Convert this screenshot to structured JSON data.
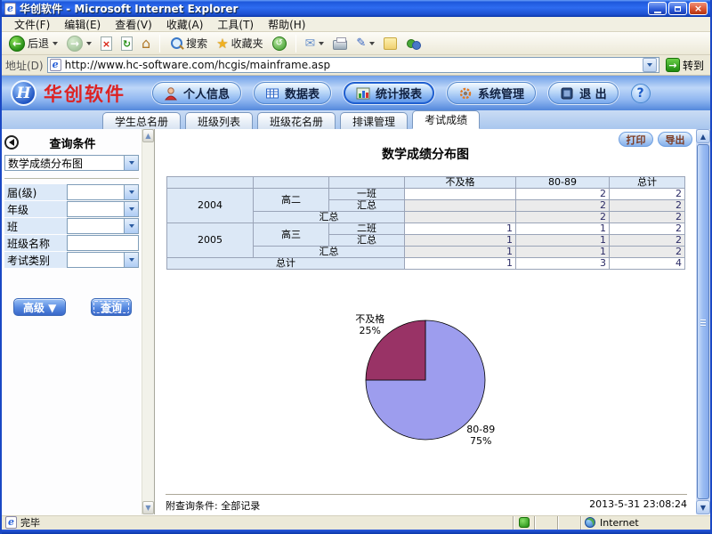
{
  "window": {
    "title": "华创软件 - Microsoft Internet Explorer",
    "menu": [
      "文件(F)",
      "编辑(E)",
      "查看(V)",
      "收藏(A)",
      "工具(T)",
      "帮助(H)"
    ],
    "toolbar": {
      "back": "后退",
      "search": "搜索",
      "favorites": "收藏夹"
    },
    "address": {
      "label": "地址(D)",
      "url": "http://www.hc-software.com/hcgis/mainframe.asp",
      "go": "转到"
    },
    "status": {
      "message": "完毕",
      "zone": "Internet"
    }
  },
  "header": {
    "brand": "华创软件",
    "nav": {
      "personal": "个人信息",
      "datatable": "数据表",
      "reports": "统计报表",
      "system": "系统管理",
      "exit": "退 出"
    }
  },
  "tabs": {
    "t0": "学生总名册",
    "t1": "班级列表",
    "t2": "班级花名册",
    "t3": "排课管理",
    "t4": "考试成绩"
  },
  "sidebar": {
    "title": "查询条件",
    "report_type": "数学成绩分布图",
    "f0": "届(级)",
    "f1": "年级",
    "f2": "班",
    "f3": "班级名称",
    "f4": "考试类别",
    "advanced": "高级 ▼",
    "query": "查询"
  },
  "content": {
    "print": "打印",
    "export": "导出",
    "title": "数学成绩分布图",
    "footer_note": "附查询条件: 全部记录",
    "timestamp": "2013-5-31 23:08:24"
  },
  "table": {
    "headers": [
      "不及格",
      "80-89",
      "总计"
    ],
    "rows": [
      {
        "year": "2004",
        "grade": "高二",
        "cls": "一班",
        "fail": "",
        "mid": "2",
        "total": "2"
      },
      {
        "cls": "汇总",
        "fail": "",
        "mid": "2",
        "total": "2"
      },
      {
        "label": "汇总",
        "fail": "",
        "mid": "2",
        "total": "2"
      },
      {
        "year": "2005",
        "grade": "高三",
        "cls": "二班",
        "fail": "1",
        "mid": "1",
        "total": "2"
      },
      {
        "cls": "汇总",
        "fail": "1",
        "mid": "1",
        "total": "2"
      },
      {
        "label": "汇总",
        "fail": "1",
        "mid": "1",
        "total": "2"
      },
      {
        "label": "总计",
        "fail": "1",
        "mid": "3",
        "total": "4"
      }
    ]
  },
  "chart_data": {
    "type": "pie",
    "title": "数学成绩分布图",
    "categories": [
      "不及格",
      "80-89"
    ],
    "values": [
      1,
      3
    ],
    "slices_draw_order": [
      {
        "label": "80-89",
        "percent": 75,
        "color": "#9d9dee"
      },
      {
        "label": "不及格",
        "percent": 25,
        "color": "#993366"
      }
    ],
    "start": "12-oclock",
    "direction": "clockwise",
    "legend_position": "labels-outside"
  },
  "colors": {
    "brand_red": "#dd2222",
    "accent_blue": "#2a62c8",
    "pie_fail": "#993366",
    "pie_pass": "#9d9dee"
  }
}
